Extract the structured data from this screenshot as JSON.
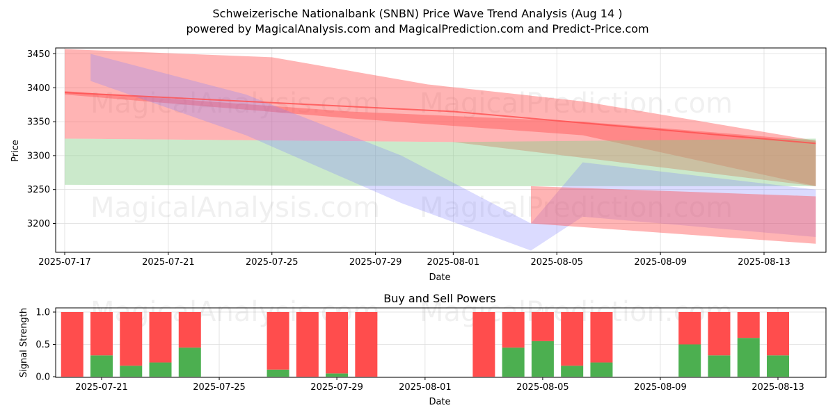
{
  "title_line1": "Schweizerische Nationalbank (SNBN) Price Wave Trend Analysis (Aug 14 )",
  "title_line2": "powered by MagicalAnalysis.com and MagicalPrediction.com and Predict-Price.com",
  "watermarks": [
    "MagicalAnalysis.com",
    "MagicalPrediction.com"
  ],
  "colors": {
    "red": "#ff4d4d",
    "green": "#4caf50",
    "blue": "#7f7fff",
    "band_green": "#8ccf8c",
    "band_brown": "#9a6a3a"
  },
  "chart_data": [
    {
      "type": "area",
      "xlabel": "Date",
      "ylabel": "Price",
      "x_ticks": [
        "2025-07-17",
        "2025-07-21",
        "2025-07-25",
        "2025-07-29",
        "2025-08-01",
        "2025-08-05",
        "2025-08-09",
        "2025-08-13"
      ],
      "y_ticks": [
        3200,
        3250,
        3300,
        3350,
        3400,
        3450
      ],
      "ylim": [
        3155,
        3457
      ],
      "grid": true,
      "bands": [
        {
          "color": "red",
          "upper": [
            [
              "2025-07-17",
              3457
            ],
            [
              "2025-07-25",
              3445
            ],
            [
              "2025-07-31",
              3405
            ],
            [
              "2025-08-06",
              3380
            ],
            [
              "2025-08-15",
              3322
            ]
          ],
          "lower": [
            [
              "2025-07-17",
              3325
            ],
            [
              "2025-08-01",
              3320
            ],
            [
              "2025-08-15",
              3255
            ]
          ]
        },
        {
          "color": "red",
          "upper": [
            [
              "2025-07-17",
              3395
            ],
            [
              "2025-07-28",
              3365
            ],
            [
              "2025-08-06",
              3350
            ],
            [
              "2025-08-15",
              3322
            ]
          ],
          "lower": [
            [
              "2025-07-17",
              3390
            ],
            [
              "2025-07-28",
              3355
            ],
            [
              "2025-08-06",
              3330
            ],
            [
              "2025-08-15",
              3255
            ]
          ]
        },
        {
          "color": "green",
          "upper": [
            [
              "2025-07-17",
              3325
            ],
            [
              "2025-08-01",
              3320
            ],
            [
              "2025-08-15",
              3325
            ]
          ],
          "lower": [
            [
              "2025-07-17",
              3257
            ],
            [
              "2025-08-01",
              3255
            ],
            [
              "2025-08-15",
              3255
            ]
          ]
        },
        {
          "color": "blue",
          "upper": [
            [
              "2025-07-18",
              3450
            ],
            [
              "2025-07-24",
              3390
            ],
            [
              "2025-07-30",
              3300
            ],
            [
              "2025-08-04",
              3200
            ],
            [
              "2025-08-06",
              3290
            ],
            [
              "2025-08-15",
              3250
            ]
          ],
          "lower": [
            [
              "2025-07-18",
              3410
            ],
            [
              "2025-07-24",
              3330
            ],
            [
              "2025-07-30",
              3230
            ],
            [
              "2025-08-04",
              3160
            ],
            [
              "2025-08-06",
              3210
            ],
            [
              "2025-08-15",
              3180
            ]
          ]
        },
        {
          "color": "red",
          "upper": [
            [
              "2025-08-04",
              3255
            ],
            [
              "2025-08-15",
              3240
            ]
          ],
          "lower": [
            [
              "2025-08-04",
              3200
            ],
            [
              "2025-08-15",
              3170
            ]
          ]
        }
      ],
      "lines": [
        {
          "color": "red",
          "points": [
            [
              "2025-07-17",
              3393
            ],
            [
              "2025-08-01",
              3365
            ],
            [
              "2025-08-15",
              3318
            ]
          ]
        }
      ]
    },
    {
      "type": "bar",
      "title": "Buy and Sell Powers",
      "xlabel": "Date",
      "ylabel": "Signal Strength",
      "x_ticks": [
        "2025-07-21",
        "2025-07-25",
        "2025-07-29",
        "2025-08-01",
        "2025-08-05",
        "2025-08-09",
        "2025-08-13"
      ],
      "y_ticks": [
        0.0,
        0.5,
        1.0
      ],
      "ylim": [
        0,
        1.05
      ],
      "categories": [
        "2025-07-20",
        "2025-07-21",
        "2025-07-22",
        "2025-07-23",
        "2025-07-24",
        "2025-07-27",
        "2025-07-28",
        "2025-07-29",
        "2025-07-30",
        "2025-08-03",
        "2025-08-04",
        "2025-08-05",
        "2025-08-06",
        "2025-08-07",
        "2025-08-10",
        "2025-08-11",
        "2025-08-12",
        "2025-08-13"
      ],
      "series": [
        {
          "name": "Buy",
          "color": "green",
          "values": [
            0.0,
            0.33,
            0.17,
            0.22,
            0.45,
            0.11,
            0.0,
            0.05,
            0.0,
            0.0,
            0.45,
            0.55,
            0.17,
            0.22,
            0.5,
            0.33,
            0.6,
            0.33
          ]
        },
        {
          "name": "Sell",
          "color": "red",
          "values": [
            1.0,
            0.67,
            0.83,
            0.78,
            0.55,
            0.89,
            1.0,
            0.95,
            1.0,
            1.0,
            0.55,
            0.45,
            0.83,
            0.78,
            0.5,
            0.67,
            0.4,
            0.67
          ]
        }
      ]
    }
  ]
}
